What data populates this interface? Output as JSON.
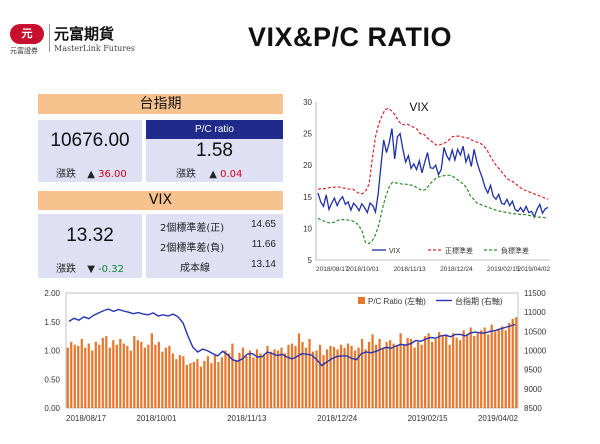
{
  "page": {
    "title": "VIX&P/C RATIO"
  },
  "logo": {
    "mark": "元",
    "name_zh": "元富期貨",
    "name_en": "MasterLink Futures",
    "sub_zh": "元富證券"
  },
  "panel": {
    "taiex_header": "台指期",
    "taiex_value": "10676.00",
    "change_label": "漲跌",
    "taiex_arrow": "▲",
    "taiex_change": "36.00",
    "pcr_header": "P/C ratio",
    "pcr_value": "1.58",
    "pcr_arrow": "▲",
    "pcr_change": "0.04",
    "vix_header": "VIX",
    "vix_value": "13.32",
    "vix_arrow": "▼",
    "vix_change": "-0.32",
    "std_up_label": "2個標準差(正)",
    "std_up_value": "14.65",
    "std_down_label": "2個標準差(負)",
    "std_down_value": "11.66",
    "cost_label": "成本線",
    "cost_value": "13.14"
  },
  "colors": {
    "header_orange": "#f6c28e",
    "card_lavender": "#dfe0f4",
    "pcr_navy": "#1f2a8a",
    "vix_line": "#1f2fa8",
    "upper_band": "#d9232b",
    "lower_band": "#2a8a2a",
    "bars": "#e8772e",
    "taiex_line": "#2634b0"
  },
  "chart_data": [
    {
      "type": "line",
      "title": "VIX",
      "x_tick_labels": [
        "2018/08/17",
        "2018/10/01",
        "2018/11/13",
        "2018/12/24",
        "2019/02/15",
        "2019/04/02"
      ],
      "ylim": [
        5,
        30
      ],
      "y_ticks": [
        5,
        10,
        15,
        20,
        25,
        30
      ],
      "grid": false,
      "legend_position": "bottom-right",
      "series": [
        {
          "name": "VIX",
          "style": "solid",
          "values": [
            15.6,
            14.2,
            13.5,
            15.3,
            13.0,
            14.0,
            14.8,
            13.6,
            14.5,
            15.0,
            13.8,
            14.2,
            12.9,
            14.0,
            13.5,
            12.8,
            13.9,
            13.3,
            12.5,
            14.0,
            13.6,
            12.6,
            15.5,
            20.0,
            24.0,
            22.0,
            23.5,
            25.8,
            21.0,
            24.5,
            25.0,
            22.5,
            20.5,
            21.5,
            19.5,
            20.2,
            19.3,
            20.7,
            18.8,
            20.5,
            22.0,
            19.6,
            19.5,
            20.0,
            18.5,
            19.3,
            22.8,
            21.5,
            20.8,
            22.4,
            20.8,
            22.5,
            21.6,
            23.0,
            20.5,
            21.6,
            19.8,
            22.5,
            20.6,
            19.2,
            18.0,
            16.5,
            15.6,
            16.8,
            15.1,
            14.6,
            15.4,
            14.0,
            13.8,
            14.6,
            13.6,
            14.3,
            13.0,
            12.7,
            13.3,
            12.6,
            13.5,
            12.5,
            12.7,
            11.8,
            13.0,
            13.8,
            12.4,
            13.1,
            13.32
          ]
        },
        {
          "name": "正標準差",
          "style": "dashed",
          "values": [
            16.2,
            16.3,
            16.3,
            16.4,
            16.5,
            16.5,
            16.6,
            16.5,
            16.4,
            16.3,
            16.2,
            16.2,
            15.8,
            15.5,
            15.5,
            16.0,
            17.0,
            21.0,
            24.5,
            26.5,
            27.8,
            28.8,
            29.0,
            28.6,
            28.0,
            27.2,
            26.5,
            26.4,
            26.5,
            26.2,
            26.0,
            25.7,
            25.0,
            25.0,
            24.4,
            24.0,
            23.6,
            23.2,
            23.2,
            23.4,
            23.6,
            24.0,
            24.5,
            24.6,
            24.6,
            24.5,
            24.4,
            24.3,
            24.0,
            23.8,
            23.6,
            23.4,
            23.0,
            22.3,
            21.4,
            20.5,
            19.8,
            19.3,
            18.6,
            18.0,
            17.6,
            17.4,
            17.0,
            16.6,
            16.2,
            16.0,
            15.8,
            15.6,
            15.4,
            15.2,
            15.0,
            14.8,
            14.65
          ]
        },
        {
          "name": "負標準差",
          "style": "dashed",
          "values": [
            11.6,
            11.3,
            11.1,
            10.9,
            10.9,
            11.0,
            11.3,
            11.4,
            11.4,
            11.3,
            11.2,
            11.0,
            10.5,
            9.6,
            7.8,
            7.6,
            8.0,
            9.0,
            10.6,
            13.0,
            15.0,
            16.5,
            17.3,
            17.2,
            17.1,
            17.0,
            17.0,
            16.9,
            16.8,
            16.5,
            16.2,
            16.0,
            16.2,
            17.0,
            17.5,
            18.0,
            18.2,
            18.3,
            18.4,
            18.4,
            18.2,
            17.8,
            17.4,
            17.0,
            16.4,
            15.2,
            14.6,
            14.0,
            13.8,
            13.6,
            13.4,
            13.2,
            13.0,
            12.8,
            12.7,
            12.6,
            12.5,
            12.4,
            12.3,
            12.3,
            12.2,
            12.2,
            12.1,
            12.0,
            11.9,
            11.8,
            11.75,
            11.7,
            11.66
          ]
        }
      ]
    },
    {
      "type": "bar+line",
      "x_tick_labels": [
        "2018/08/17",
        "2018/10/01",
        "2018/11/13",
        "2018/12/24",
        "2019/02/15",
        "2019/04/02"
      ],
      "ylim_left": [
        0,
        2
      ],
      "y_ticks_left": [
        "0.00",
        "0.50",
        "1.00",
        "1.50",
        "2.00"
      ],
      "ylim_right": [
        8500,
        11500
      ],
      "y_ticks_right": [
        "8500",
        "9000",
        "9500",
        "10000",
        "10500",
        "11000",
        "11500"
      ],
      "legend_position": "top-right",
      "series": [
        {
          "name": "P/C Ratio (左軸)",
          "type": "bar",
          "axis": "left",
          "values": [
            1.05,
            1.15,
            1.1,
            1.08,
            1.2,
            1.05,
            1.12,
            1.0,
            1.15,
            1.1,
            1.22,
            1.25,
            1.05,
            1.18,
            1.1,
            1.2,
            1.12,
            1.08,
            1.0,
            1.25,
            1.18,
            1.15,
            1.05,
            1.1,
            1.3,
            1.1,
            1.15,
            0.98,
            1.05,
            1.08,
            0.95,
            0.85,
            0.92,
            0.9,
            0.75,
            0.78,
            0.8,
            0.85,
            0.72,
            0.82,
            0.9,
            0.78,
            0.92,
            0.8,
            0.88,
            1.0,
            0.95,
            1.12,
            0.82,
            0.96,
            1.05,
            0.9,
            1.0,
            0.88,
            1.02,
            0.95,
            0.92,
            1.08,
            0.98,
            1.02,
            1.0,
            1.05,
            0.95,
            1.1,
            1.12,
            1.08,
            1.3,
            1.15,
            1.05,
            1.2,
            0.98,
            1.0,
            1.1,
            0.92,
            1.02,
            1.08,
            1.06,
            1.02,
            1.1,
            1.05,
            1.12,
            1.08,
            1.0,
            1.05,
            1.2,
            1.02,
            1.15,
            1.28,
            1.1,
            1.2,
            1.05,
            1.15,
            1.18,
            1.12,
            1.08,
            1.3,
            1.1,
            1.22,
            1.2,
            1.05,
            1.15,
            1.1,
            1.25,
            1.3,
            1.15,
            1.2,
            1.32,
            1.25,
            1.28,
            1.1,
            1.3,
            1.22,
            1.18,
            1.35,
            1.28,
            1.4,
            1.25,
            1.3,
            1.35,
            1.4,
            1.28,
            1.45,
            1.33,
            1.38,
            1.42,
            1.35,
            1.48,
            1.55,
            1.58
          ]
        },
        {
          "name": "台指期 (右軸)",
          "type": "line",
          "axis": "right",
          "values": [
            10760,
            10840,
            10790,
            10880,
            10830,
            10920,
            10980,
            11040,
            11080,
            11020,
            11070,
            11030,
            11000,
            10960,
            10990,
            10950,
            10930,
            10980,
            10900,
            10930,
            10900,
            10950,
            10880,
            10720,
            10380,
            10080,
            9960,
            10040,
            9990,
            9920,
            9860,
            9980,
            9890,
            9760,
            9720,
            9780,
            9910,
            9920,
            9830,
            9840,
            9960,
            9920,
            9870,
            9900,
            9830,
            9780,
            9840,
            9920,
            9900,
            9880,
            9760,
            9610,
            9700,
            9780,
            9840,
            9860,
            9860,
            9800,
            9760,
            9920,
            9960,
            9940,
            9980,
            10040,
            10080,
            10060,
            10120,
            10160,
            10140,
            10180,
            10260,
            10240,
            10300,
            10340,
            10320,
            10380,
            10400,
            10360,
            10420,
            10420,
            10380,
            10460,
            10480,
            10460,
            10460,
            10500,
            10520,
            10560,
            10600,
            10640,
            10676
          ]
        }
      ]
    }
  ]
}
